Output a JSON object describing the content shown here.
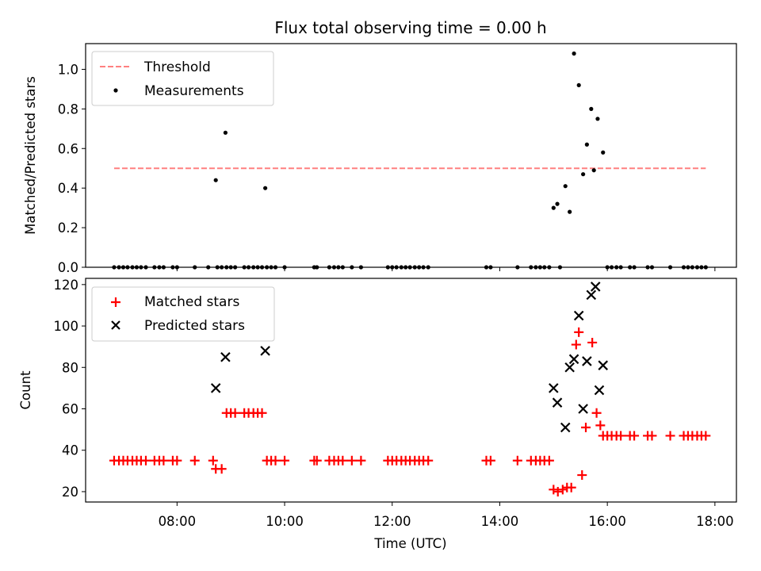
{
  "title": "Flux total observing time = 0.00 h",
  "chart_data": [
    {
      "type": "scatter",
      "ylabel": "Matched/Predicted stars",
      "xlim": [
        6.3,
        18.4
      ],
      "ylim": [
        0,
        1.13
      ],
      "yticks": [
        0.0,
        0.2,
        0.4,
        0.6,
        0.8,
        1.0
      ],
      "ytick_labels": [
        "0.0",
        "0.2",
        "0.4",
        "0.6",
        "0.8",
        "1.0"
      ],
      "legend": {
        "position": "upper-left",
        "entries": [
          {
            "label": "Threshold",
            "marker": "dashed-line",
            "color": "#ff8080"
          },
          {
            "label": "Measurements",
            "marker": "dot",
            "color": "#000000"
          }
        ]
      },
      "threshold": {
        "value": 0.5,
        "x": [
          6.83,
          17.83
        ]
      },
      "series": [
        {
          "name": "Measurements",
          "points": [
            [
              6.83,
              0
            ],
            [
              6.92,
              0
            ],
            [
              7.0,
              0
            ],
            [
              7.08,
              0
            ],
            [
              7.17,
              0
            ],
            [
              7.25,
              0
            ],
            [
              7.33,
              0
            ],
            [
              7.42,
              0
            ],
            [
              7.58,
              0
            ],
            [
              7.67,
              0
            ],
            [
              7.75,
              0
            ],
            [
              7.92,
              0
            ],
            [
              8.0,
              0
            ],
            [
              8.33,
              0
            ],
            [
              8.58,
              0
            ],
            [
              8.72,
              0.44
            ],
            [
              8.75,
              0
            ],
            [
              8.83,
              0
            ],
            [
              8.9,
              0.68
            ],
            [
              8.92,
              0
            ],
            [
              9.0,
              0
            ],
            [
              9.08,
              0
            ],
            [
              9.25,
              0
            ],
            [
              9.33,
              0
            ],
            [
              9.42,
              0
            ],
            [
              9.5,
              0
            ],
            [
              9.58,
              0
            ],
            [
              9.64,
              0.4
            ],
            [
              9.67,
              0
            ],
            [
              9.75,
              0
            ],
            [
              9.83,
              0
            ],
            [
              10.0,
              0
            ],
            [
              10.55,
              0
            ],
            [
              10.6,
              0
            ],
            [
              10.83,
              0
            ],
            [
              10.92,
              0
            ],
            [
              11.0,
              0
            ],
            [
              11.08,
              0
            ],
            [
              11.25,
              0
            ],
            [
              11.42,
              0
            ],
            [
              11.92,
              0
            ],
            [
              12.0,
              0
            ],
            [
              12.08,
              0
            ],
            [
              12.17,
              0
            ],
            [
              12.25,
              0
            ],
            [
              12.33,
              0
            ],
            [
              12.42,
              0
            ],
            [
              12.5,
              0
            ],
            [
              12.58,
              0
            ],
            [
              12.67,
              0
            ],
            [
              13.75,
              0
            ],
            [
              13.83,
              0
            ],
            [
              14.33,
              0
            ],
            [
              14.58,
              0
            ],
            [
              14.67,
              0
            ],
            [
              14.75,
              0
            ],
            [
              14.83,
              0
            ],
            [
              14.92,
              0
            ],
            [
              15.0,
              0.3
            ],
            [
              15.07,
              0.32
            ],
            [
              15.12,
              0
            ],
            [
              15.22,
              0.41
            ],
            [
              15.3,
              0.28
            ],
            [
              15.38,
              1.08
            ],
            [
              15.47,
              0.92
            ],
            [
              15.55,
              0.47
            ],
            [
              15.62,
              0.62
            ],
            [
              15.7,
              0.8
            ],
            [
              15.75,
              0.49
            ],
            [
              15.82,
              0.75
            ],
            [
              15.92,
              0.58
            ],
            [
              16.0,
              0
            ],
            [
              16.08,
              0
            ],
            [
              16.17,
              0
            ],
            [
              16.25,
              0
            ],
            [
              16.42,
              0
            ],
            [
              16.5,
              0
            ],
            [
              16.75,
              0
            ],
            [
              16.83,
              0
            ],
            [
              17.17,
              0
            ],
            [
              17.42,
              0
            ],
            [
              17.5,
              0
            ],
            [
              17.58,
              0
            ],
            [
              17.67,
              0
            ],
            [
              17.75,
              0
            ],
            [
              17.83,
              0
            ]
          ]
        }
      ]
    },
    {
      "type": "scatter",
      "xlabel": "Time (UTC)",
      "ylabel": "Count",
      "xlim": [
        6.3,
        18.4
      ],
      "ylim": [
        15,
        123
      ],
      "xticks": [
        8,
        10,
        12,
        14,
        16,
        18
      ],
      "xtick_labels": [
        "08:00",
        "10:00",
        "12:00",
        "14:00",
        "16:00",
        "18:00"
      ],
      "yticks": [
        20,
        40,
        60,
        80,
        100,
        120
      ],
      "ytick_labels": [
        "20",
        "40",
        "60",
        "80",
        "100",
        "120"
      ],
      "legend": {
        "position": "upper-left",
        "entries": [
          {
            "label": "Matched stars",
            "marker": "plus",
            "color": "#ff0000"
          },
          {
            "label": "Predicted stars",
            "marker": "x",
            "color": "#000000"
          }
        ]
      },
      "series": [
        {
          "name": "Matched stars",
          "points": [
            [
              6.83,
              35
            ],
            [
              6.92,
              35
            ],
            [
              7.0,
              35
            ],
            [
              7.08,
              35
            ],
            [
              7.17,
              35
            ],
            [
              7.25,
              35
            ],
            [
              7.33,
              35
            ],
            [
              7.42,
              35
            ],
            [
              7.58,
              35
            ],
            [
              7.67,
              35
            ],
            [
              7.75,
              35
            ],
            [
              7.92,
              35
            ],
            [
              8.0,
              35
            ],
            [
              8.33,
              35
            ],
            [
              8.67,
              35
            ],
            [
              8.72,
              31
            ],
            [
              8.83,
              31
            ],
            [
              8.92,
              58
            ],
            [
              9.0,
              58
            ],
            [
              9.08,
              58
            ],
            [
              9.25,
              58
            ],
            [
              9.33,
              58
            ],
            [
              9.42,
              58
            ],
            [
              9.5,
              58
            ],
            [
              9.58,
              58
            ],
            [
              9.67,
              35
            ],
            [
              9.75,
              35
            ],
            [
              9.83,
              35
            ],
            [
              10.0,
              35
            ],
            [
              10.55,
              35
            ],
            [
              10.6,
              35
            ],
            [
              10.83,
              35
            ],
            [
              10.92,
              35
            ],
            [
              11.0,
              35
            ],
            [
              11.08,
              35
            ],
            [
              11.25,
              35
            ],
            [
              11.42,
              35
            ],
            [
              11.92,
              35
            ],
            [
              12.0,
              35
            ],
            [
              12.08,
              35
            ],
            [
              12.17,
              35
            ],
            [
              12.25,
              35
            ],
            [
              12.33,
              35
            ],
            [
              12.42,
              35
            ],
            [
              12.5,
              35
            ],
            [
              12.58,
              35
            ],
            [
              12.67,
              35
            ],
            [
              13.75,
              35
            ],
            [
              13.83,
              35
            ],
            [
              14.33,
              35
            ],
            [
              14.58,
              35
            ],
            [
              14.67,
              35
            ],
            [
              14.75,
              35
            ],
            [
              14.83,
              35
            ],
            [
              14.92,
              35
            ],
            [
              15.0,
              21
            ],
            [
              15.08,
              20
            ],
            [
              15.17,
              21
            ],
            [
              15.25,
              22
            ],
            [
              15.33,
              22
            ],
            [
              15.42,
              91
            ],
            [
              15.47,
              97
            ],
            [
              15.53,
              28
            ],
            [
              15.6,
              51
            ],
            [
              15.72,
              92
            ],
            [
              15.8,
              58
            ],
            [
              15.87,
              52
            ],
            [
              15.92,
              47
            ],
            [
              16.0,
              47
            ],
            [
              16.08,
              47
            ],
            [
              16.17,
              47
            ],
            [
              16.25,
              47
            ],
            [
              16.42,
              47
            ],
            [
              16.5,
              47
            ],
            [
              16.75,
              47
            ],
            [
              16.83,
              47
            ],
            [
              17.17,
              47
            ],
            [
              17.42,
              47
            ],
            [
              17.5,
              47
            ],
            [
              17.58,
              47
            ],
            [
              17.67,
              47
            ],
            [
              17.75,
              47
            ],
            [
              17.83,
              47
            ]
          ]
        },
        {
          "name": "Predicted stars",
          "points": [
            [
              8.72,
              70
            ],
            [
              8.9,
              85
            ],
            [
              9.64,
              88
            ],
            [
              15.0,
              70
            ],
            [
              15.07,
              63
            ],
            [
              15.22,
              51
            ],
            [
              15.3,
              80
            ],
            [
              15.38,
              84
            ],
            [
              15.47,
              105
            ],
            [
              15.55,
              60
            ],
            [
              15.62,
              83
            ],
            [
              15.7,
              115
            ],
            [
              15.78,
              119
            ],
            [
              15.85,
              69
            ],
            [
              15.92,
              81
            ]
          ]
        }
      ]
    }
  ]
}
